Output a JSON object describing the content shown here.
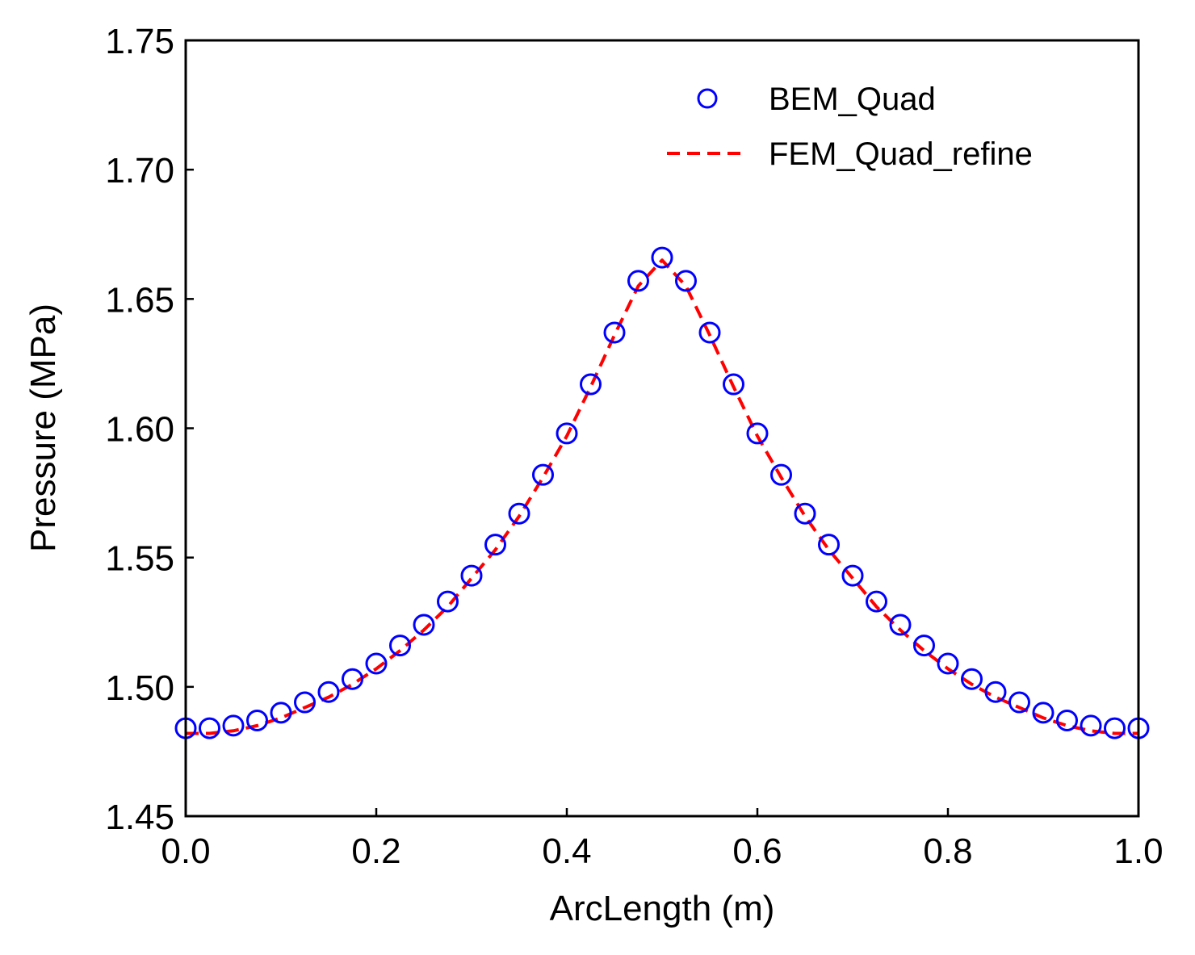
{
  "chart_data": {
    "type": "line",
    "xlabel": "ArcLength (m)",
    "ylabel": "Pressure (MPa)",
    "xlim": [
      0.0,
      1.0
    ],
    "ylim": [
      1.45,
      1.75
    ],
    "xticks": [
      "0.0",
      "0.2",
      "0.4",
      "0.6",
      "0.8",
      "1.0"
    ],
    "yticks": [
      "1.45",
      "1.50",
      "1.55",
      "1.60",
      "1.65",
      "1.70",
      "1.75"
    ],
    "grid": false,
    "legend_position": "top-right",
    "series": [
      {
        "name": "BEM_Quad",
        "style": "markers",
        "marker": "open-circle",
        "color": "#0000ff",
        "x": [
          0.0,
          0.025,
          0.05,
          0.075,
          0.1,
          0.125,
          0.15,
          0.175,
          0.2,
          0.225,
          0.25,
          0.275,
          0.3,
          0.325,
          0.35,
          0.375,
          0.4,
          0.425,
          0.45,
          0.475,
          0.5,
          0.525,
          0.55,
          0.575,
          0.6,
          0.625,
          0.65,
          0.675,
          0.7,
          0.725,
          0.75,
          0.775,
          0.8,
          0.825,
          0.85,
          0.875,
          0.9,
          0.925,
          0.95,
          0.975,
          1.0
        ],
        "y": [
          1.484,
          1.484,
          1.485,
          1.487,
          1.49,
          1.494,
          1.498,
          1.503,
          1.509,
          1.516,
          1.524,
          1.533,
          1.543,
          1.555,
          1.567,
          1.582,
          1.598,
          1.617,
          1.637,
          1.657,
          1.666,
          1.657,
          1.637,
          1.617,
          1.598,
          1.582,
          1.567,
          1.555,
          1.543,
          1.533,
          1.524,
          1.516,
          1.509,
          1.503,
          1.498,
          1.494,
          1.49,
          1.487,
          1.485,
          1.484,
          1.484
        ]
      },
      {
        "name": "FEM_Quad_refine",
        "style": "dashed-line",
        "color": "#ff0000",
        "x": [
          0.0,
          0.025,
          0.05,
          0.075,
          0.1,
          0.125,
          0.15,
          0.175,
          0.2,
          0.225,
          0.25,
          0.275,
          0.3,
          0.325,
          0.35,
          0.375,
          0.4,
          0.425,
          0.45,
          0.475,
          0.5,
          0.525,
          0.55,
          0.575,
          0.6,
          0.625,
          0.65,
          0.675,
          0.7,
          0.725,
          0.75,
          0.775,
          0.8,
          0.825,
          0.85,
          0.875,
          0.9,
          0.925,
          0.95,
          0.975,
          1.0
        ],
        "y": [
          1.482,
          1.482,
          1.483,
          1.485,
          1.488,
          1.492,
          1.496,
          1.501,
          1.507,
          1.514,
          1.522,
          1.531,
          1.542,
          1.553,
          1.566,
          1.581,
          1.597,
          1.616,
          1.636,
          1.655,
          1.665,
          1.655,
          1.636,
          1.616,
          1.597,
          1.581,
          1.566,
          1.553,
          1.542,
          1.531,
          1.522,
          1.514,
          1.507,
          1.501,
          1.496,
          1.492,
          1.488,
          1.485,
          1.483,
          1.482,
          1.482
        ]
      }
    ]
  }
}
